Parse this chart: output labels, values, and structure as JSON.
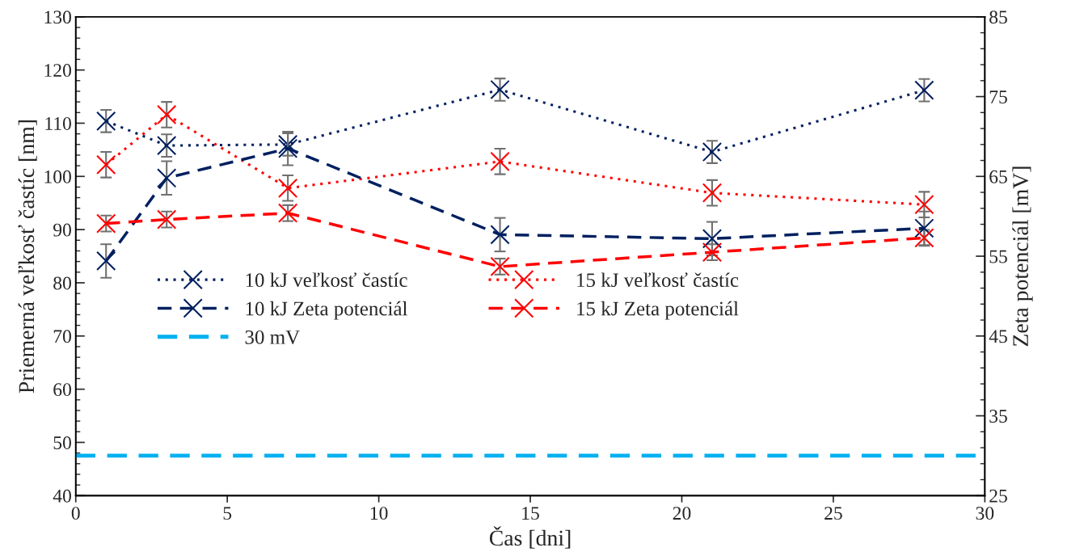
{
  "chart_data": {
    "type": "line",
    "xlabel": "Čas [dni]",
    "ylabel": "Priemerná veľkosť častíc [nm]",
    "y2label": "Zeta potenciál [mV]",
    "x": [
      1,
      3,
      7,
      14,
      21,
      28
    ],
    "xlim": [
      0,
      30
    ],
    "xticks": [
      0,
      5,
      10,
      15,
      20,
      25,
      30
    ],
    "ylim": [
      40,
      130
    ],
    "yticks": [
      40,
      50,
      60,
      70,
      80,
      90,
      100,
      110,
      120,
      130
    ],
    "y2lim": [
      25,
      85
    ],
    "y2ticks": [
      25,
      35,
      45,
      55,
      65,
      75,
      85
    ],
    "grid": false,
    "legend": "bottom left",
    "marker": "cross",
    "series": [
      {
        "name": "10 kJ veľkosť častíc",
        "color": "#002060",
        "line_style": "dotted",
        "values": [
          110.4,
          105.8,
          106.0,
          116.3,
          104.6,
          116.2
        ],
        "errors": [
          2.1,
          2.1,
          2.1,
          2.1,
          2.1,
          2.1
        ]
      },
      {
        "name": "15 kJ veľkosť častíc",
        "color": "#ff0000",
        "line_style": "dotted",
        "values": [
          102.2,
          111.6,
          97.8,
          102.8,
          96.9,
          94.7
        ],
        "errors": [
          2.4,
          2.4,
          2.4,
          2.4,
          2.4,
          2.4
        ]
      },
      {
        "name": "10 kJ Zeta potenciál",
        "color": "#002060",
        "line_style": "dashed",
        "axis": "y2",
        "values": [
          54.4,
          64.8,
          68.5,
          57.7,
          57.2,
          58.5
        ],
        "errors": [
          2.1,
          2.1,
          2.1,
          2.1,
          2.1,
          2.1
        ]
      },
      {
        "name": "15 kJ Zeta potenciál",
        "color": "#ff0000",
        "line_style": "dashed",
        "axis": "y2",
        "values": [
          59.1,
          59.6,
          60.4,
          53.7,
          55.5,
          57.3
        ],
        "errors": [
          1.0,
          1.0,
          1.0,
          1.0,
          1.0,
          1.0
        ]
      }
    ],
    "ref_lines": [
      {
        "axis": "y2",
        "value": 30,
        "label": "30 mV",
        "color": "#00b0f0",
        "line_style": "dashed"
      }
    ]
  }
}
